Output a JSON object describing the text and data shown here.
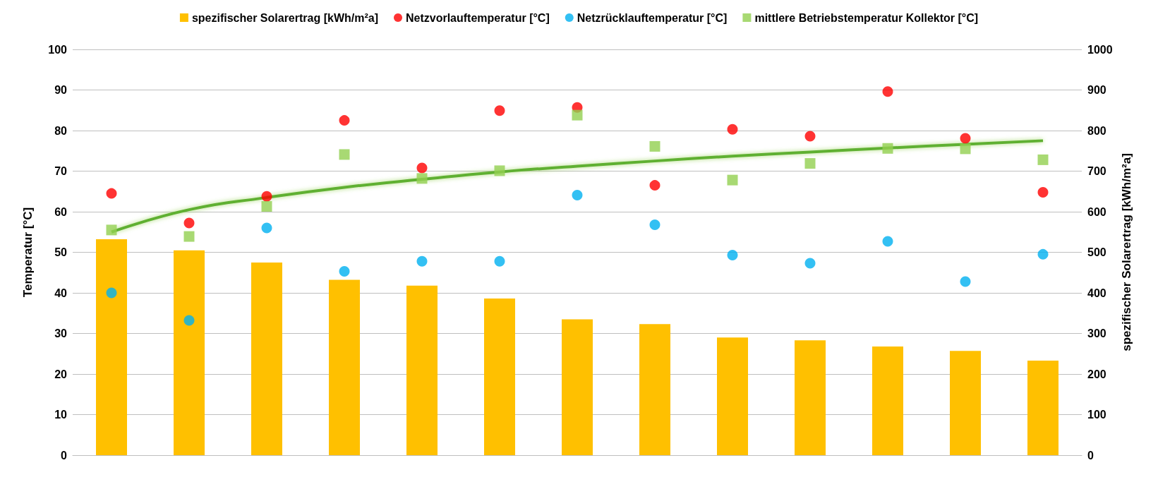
{
  "chart_data": {
    "type": "scatter",
    "ylabel": "Temperatur [°C]",
    "y2label": "spezifischer Solarertrag [kWh/m²a]",
    "categories": [
      null,
      null,
      null,
      null,
      null,
      null,
      null,
      null,
      null,
      null,
      null,
      null,
      null
    ],
    "series": [
      {
        "name": "spezifischer Solarertrag [kWh/m²a]",
        "type": "bar",
        "axis": "y2",
        "color": "#ffc000",
        "values": [
          532,
          505,
          475,
          432,
          418,
          386,
          335,
          323,
          290,
          283,
          268,
          257,
          233
        ]
      },
      {
        "name": "Netzvorlauftemperatur [°C]",
        "marker": "circle",
        "color": "#ff0000",
        "values": [
          64.5,
          57.2,
          63.8,
          82.5,
          70.8,
          84.9,
          85.7,
          66.5,
          80.3,
          78.6,
          89.6,
          78.1,
          64.8
        ]
      },
      {
        "name": "Netzrücklauftemperatur [°C]",
        "marker": "circle",
        "color": "#00b0f0",
        "values": [
          40,
          33.2,
          56,
          45.3,
          47.8,
          47.8,
          64.1,
          56.8,
          49.3,
          47.3,
          52.7,
          42.8,
          49.5
        ]
      },
      {
        "name": "mittlere Betriebstemperatur Kollektor [°C]",
        "marker": "square",
        "color": "#92d050",
        "values": [
          55.5,
          53.9,
          61.3,
          74.1,
          68.2,
          70.1,
          83.8,
          76.1,
          67.8,
          71.9,
          75.6,
          75.5,
          72.8
        ]
      },
      {
        "type": "line",
        "marker": "none",
        "color": "#5fb030",
        "values": [
          55,
          60.5,
          63.5,
          66,
          68,
          69.8,
          71.2,
          72.5,
          73.7,
          74.7,
          75.7,
          76.6,
          77.5
        ]
      }
    ],
    "ylim": [
      0,
      100
    ],
    "yticks": [
      0,
      10,
      20,
      30,
      40,
      50,
      60,
      70,
      80,
      90,
      100
    ],
    "y2lim": [
      0,
      1000
    ],
    "y2ticks": [
      0,
      100,
      200,
      300,
      400,
      500,
      600,
      700,
      800,
      900,
      1000
    ],
    "grid": "y",
    "legend": "top"
  }
}
